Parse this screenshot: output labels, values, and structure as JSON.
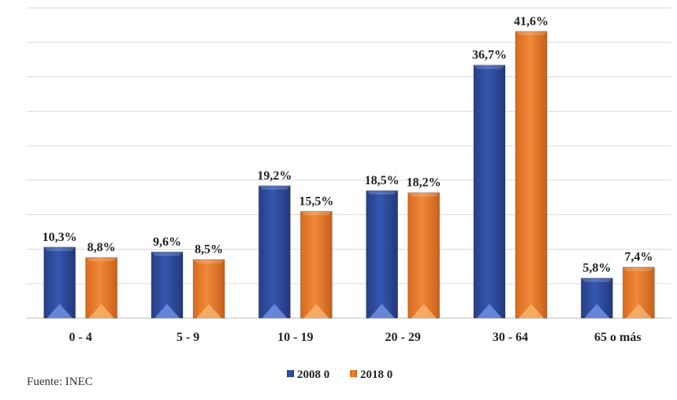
{
  "source": "Fuente: INEC",
  "chart_data": {
    "type": "bar",
    "categories": [
      "0 - 4",
      "5 - 9",
      "10 - 19",
      "20 - 29",
      "30 - 64",
      "65 o más"
    ],
    "series": [
      {
        "name": "2008 0",
        "color": "#2f4f9f",
        "values": [
          10.3,
          9.6,
          19.2,
          18.5,
          36.7,
          5.8
        ],
        "labels": [
          "10,3%",
          "9,6%",
          "19,2%",
          "18,5%",
          "36,7%",
          "5,8%"
        ]
      },
      {
        "name": "2018 0",
        "color": "#e87a2a",
        "values": [
          8.8,
          8.5,
          15.5,
          18.2,
          41.6,
          7.4
        ],
        "labels": [
          "8,8%",
          "8,5%",
          "15,5%",
          "18,2%",
          "41,6%",
          "7,4%"
        ]
      }
    ],
    "ylim": [
      0,
      45
    ],
    "grid": true,
    "legend_position": "bottom"
  }
}
